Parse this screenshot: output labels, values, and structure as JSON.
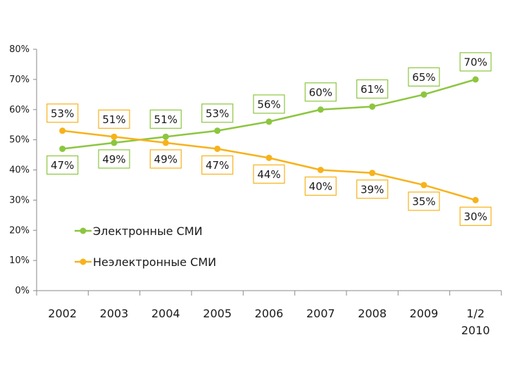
{
  "chart_data": {
    "type": "line",
    "categories": [
      "2002",
      "2003",
      "2004",
      "2005",
      "2006",
      "2007",
      "2008",
      "2009",
      "1/2\n2010"
    ],
    "ylim": [
      0,
      80
    ],
    "yticks": [
      0,
      10,
      20,
      30,
      40,
      50,
      60,
      70,
      80
    ],
    "ytick_labels": [
      "0%",
      "10%",
      "20%",
      "30%",
      "40%",
      "50%",
      "60%",
      "70%",
      "80%"
    ],
    "grid": false,
    "legend_position": "bottom-left",
    "series": [
      {
        "name": "Электронные СМИ",
        "color": "#8cc63f",
        "values": [
          47,
          49,
          51,
          53,
          56,
          60,
          61,
          65,
          70
        ],
        "labels": [
          "47%",
          "49%",
          "51%",
          "53%",
          "56%",
          "60%",
          "61%",
          "65%",
          "70%"
        ],
        "label_side": [
          "below",
          "below",
          "above",
          "above",
          "above",
          "above",
          "above",
          "above",
          "above"
        ]
      },
      {
        "name": "Неэлектронные СМИ",
        "color": "#f7b21b",
        "values": [
          53,
          51,
          49,
          47,
          44,
          40,
          39,
          35,
          30
        ],
        "labels": [
          "53%",
          "51%",
          "49%",
          "47%",
          "44%",
          "40%",
          "39%",
          "35%",
          "30%"
        ],
        "label_side": [
          "above",
          "above",
          "below",
          "below",
          "below",
          "below",
          "below",
          "below",
          "below"
        ]
      }
    ]
  }
}
